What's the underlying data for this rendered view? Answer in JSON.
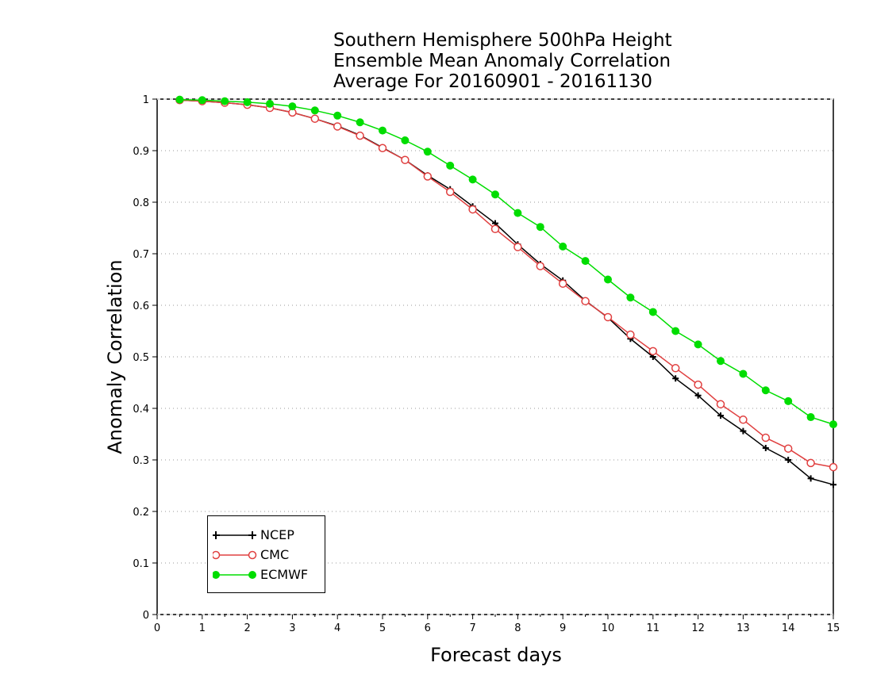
{
  "chart_data": {
    "type": "line",
    "title": "Southern Hemisphere 500hPa Height",
    "title_lines": [
      "Southern Hemisphere 500hPa Height",
      "Ensemble Mean Anomaly Correlation",
      "Average For 20160901 - 20161130"
    ],
    "xlabel": "Forecast days",
    "ylabel": "Anomaly Correlation",
    "xlim": [
      0,
      15
    ],
    "ylim": [
      0,
      1
    ],
    "x_ticks": [
      "0",
      "1",
      "2",
      "3",
      "4",
      "5",
      "6",
      "7",
      "8",
      "9",
      "10",
      "11",
      "12",
      "13",
      "14",
      "15"
    ],
    "y_ticks": [
      "0",
      "0.1",
      "0.2",
      "0.3",
      "0.4",
      "0.5",
      "0.6",
      "0.7",
      "0.8",
      "0.9",
      "1"
    ],
    "grid": "dotted horizontal",
    "legend_position": "bottom-left",
    "x": [
      0.5,
      1,
      1.5,
      2,
      2.5,
      3,
      3.5,
      4,
      4.5,
      5,
      5.5,
      6,
      6.5,
      7,
      7.5,
      8,
      8.5,
      9,
      9.5,
      10,
      10.5,
      11,
      11.5,
      12,
      12.5,
      13,
      13.5,
      14,
      14.5,
      15
    ],
    "series": [
      {
        "name": "NCEP",
        "color": "#000000",
        "marker": "plus",
        "values": [
          0.998,
          0.996,
          0.993,
          0.989,
          0.983,
          0.974,
          0.962,
          0.948,
          0.93,
          0.906,
          0.882,
          0.852,
          0.825,
          0.792,
          0.759,
          0.718,
          0.68,
          0.648,
          0.609,
          0.576,
          0.535,
          0.5,
          0.458,
          0.425,
          0.386,
          0.356,
          0.323,
          0.3,
          0.264,
          0.252
        ]
      },
      {
        "name": "CMC",
        "color": "#e04040",
        "marker": "open-circle",
        "values": [
          0.998,
          0.996,
          0.993,
          0.989,
          0.983,
          0.974,
          0.962,
          0.947,
          0.929,
          0.905,
          0.882,
          0.85,
          0.82,
          0.786,
          0.748,
          0.713,
          0.676,
          0.642,
          0.608,
          0.577,
          0.543,
          0.511,
          0.478,
          0.446,
          0.408,
          0.378,
          0.343,
          0.322,
          0.294,
          0.286
        ]
      },
      {
        "name": "ECMWF",
        "color": "#00dd00",
        "marker": "filled-circle",
        "values": [
          0.999,
          0.998,
          0.996,
          0.994,
          0.991,
          0.986,
          0.978,
          0.968,
          0.955,
          0.939,
          0.92,
          0.898,
          0.871,
          0.844,
          0.815,
          0.779,
          0.752,
          0.714,
          0.686,
          0.65,
          0.615,
          0.587,
          0.55,
          0.524,
          0.492,
          0.467,
          0.435,
          0.414,
          0.383,
          0.369
        ]
      }
    ]
  }
}
